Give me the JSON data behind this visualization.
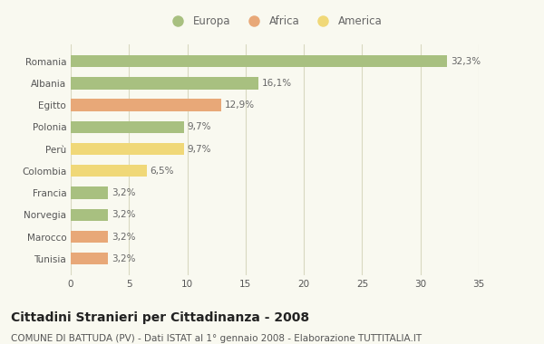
{
  "categories": [
    "Romania",
    "Albania",
    "Egitto",
    "Polonia",
    "Perù",
    "Colombia",
    "Francia",
    "Norvegia",
    "Marocco",
    "Tunisia"
  ],
  "values": [
    32.3,
    16.1,
    12.9,
    9.7,
    9.7,
    6.5,
    3.2,
    3.2,
    3.2,
    3.2
  ],
  "labels": [
    "32,3%",
    "16,1%",
    "12,9%",
    "9,7%",
    "9,7%",
    "6,5%",
    "3,2%",
    "3,2%",
    "3,2%",
    "3,2%"
  ],
  "colors": [
    "#a8c080",
    "#a8c080",
    "#e8a878",
    "#a8c080",
    "#f0d878",
    "#f0d878",
    "#a8c080",
    "#a8c080",
    "#e8a878",
    "#e8a878"
  ],
  "legend": [
    {
      "label": "Europa",
      "color": "#a8c080"
    },
    {
      "label": "Africa",
      "color": "#e8a878"
    },
    {
      "label": "America",
      "color": "#f0d878"
    }
  ],
  "xlim": [
    0,
    35
  ],
  "xticks": [
    0,
    5,
    10,
    15,
    20,
    25,
    30,
    35
  ],
  "title": "Cittadini Stranieri per Cittadinanza - 2008",
  "subtitle": "COMUNE DI BATTUDA (PV) - Dati ISTAT al 1° gennaio 2008 - Elaborazione TUTTITALIA.IT",
  "background_color": "#f9f9f0",
  "bar_height": 0.55,
  "grid_color": "#d8d8c0",
  "title_fontsize": 10,
  "subtitle_fontsize": 7.5,
  "label_fontsize": 7.5,
  "tick_fontsize": 7.5,
  "legend_fontsize": 8.5
}
